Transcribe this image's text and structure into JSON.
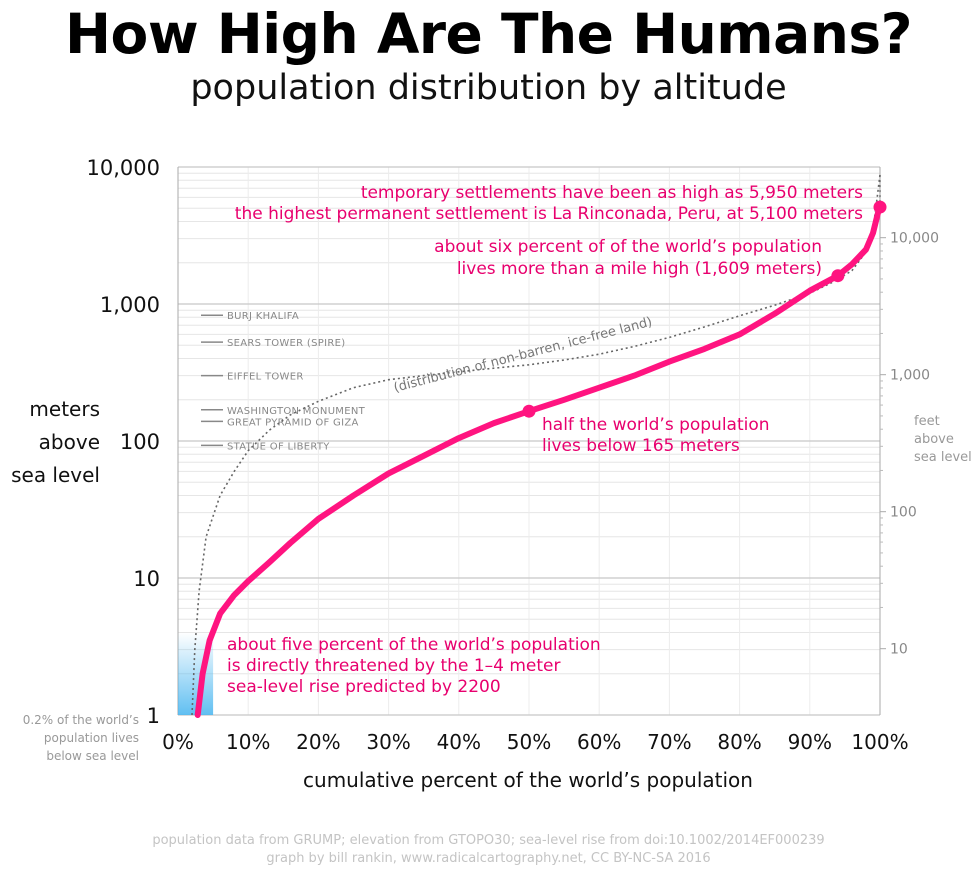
{
  "page": {
    "title": "How High Are The Humans?",
    "subtitle": "population distribution by altitude",
    "footer_line1": "population data from GRUMP; elevation from GTOPO30; sea-level rise from doi:10.1002/2014EF000239",
    "footer_line2": "graph by bill rankin, www.radicalcartography.net, CC BY-NC-SA 2016"
  },
  "colors": {
    "population_curve": "#ff1480",
    "land_curve": "#666666",
    "sea_level_fill": "#4fb8f0",
    "gridline": "#c8c8c8",
    "annotation_text": "#e8006e"
  },
  "chart_data": {
    "type": "line",
    "xlabel": "cumulative percent of the world’s population",
    "ylabel_left": [
      "meters",
      "above",
      "sea level"
    ],
    "ylabel_right": [
      "feet",
      "above",
      "sea level"
    ],
    "y_scale": "log",
    "ylim": [
      1,
      10000
    ],
    "xlim": [
      0,
      100
    ],
    "x_ticks": [
      0,
      10,
      20,
      30,
      40,
      50,
      60,
      70,
      80,
      90,
      100
    ],
    "x_tick_labels": [
      "0%",
      "10%",
      "20%",
      "30%",
      "40%",
      "50%",
      "60%",
      "70%",
      "80%",
      "90%",
      "100%"
    ],
    "y_ticks": [
      1,
      10,
      100,
      1000,
      10000
    ],
    "y_tick_labels": [
      "1",
      "10",
      "100",
      "1,000",
      "10,000"
    ],
    "y_feet_ticks": [
      10,
      100,
      1000,
      10000
    ],
    "y_feet_tick_labels": [
      "10",
      "100",
      "1,000",
      "10,000"
    ],
    "grid": true,
    "series": [
      {
        "x": [
          2.8,
          3.5,
          4.5,
          6,
          8,
          10,
          13,
          16,
          20,
          25,
          30,
          35,
          40,
          45,
          50,
          55,
          60,
          65,
          70,
          75,
          80,
          85,
          90,
          94,
          96,
          98,
          99,
          99.7,
          100
        ],
        "y": [
          1,
          2,
          3.5,
          5.5,
          7.5,
          9.5,
          13,
          18,
          27,
          40,
          58,
          78,
          105,
          135,
          165,
          200,
          245,
          300,
          380,
          470,
          600,
          850,
          1250,
          1609,
          1950,
          2500,
          3300,
          4600,
          5100
        ]
      },
      {
        "x": [
          2,
          2.4,
          3,
          4,
          6,
          8,
          10,
          13,
          16,
          20,
          25,
          30,
          35,
          40,
          45,
          50,
          55,
          60,
          65,
          70,
          75,
          80,
          85,
          90,
          93,
          96,
          98,
          99,
          99.6,
          100
        ],
        "y": [
          1,
          3,
          8,
          20,
          40,
          60,
          85,
          120,
          155,
          195,
          245,
          280,
          300,
          320,
          340,
          360,
          390,
          430,
          490,
          570,
          680,
          820,
          980,
          1200,
          1420,
          1750,
          2400,
          3500,
          6000,
          8800
        ]
      }
    ],
    "land_series_label": "(distribution of non-barren, ice-free land)",
    "highlight_points": [
      {
        "x": 50,
        "y": 165
      },
      {
        "x": 94,
        "y": 1609
      },
      {
        "x": 100,
        "y": 5100
      }
    ],
    "sea_level_band": {
      "x": [
        0,
        5
      ],
      "y": [
        1,
        4
      ]
    },
    "reference_heights": [
      {
        "label": "BURJ KHALIFA",
        "y": 828
      },
      {
        "label": "SEARS TOWER (SPIRE)",
        "y": 527
      },
      {
        "label": "EIFFEL TOWER",
        "y": 300
      },
      {
        "label": "WASHINGTON MONUMENT",
        "y": 169
      },
      {
        "label": "GREAT PYRAMID OF GIZA",
        "y": 139
      },
      {
        "label": "STATUE OF LIBERTY",
        "y": 93
      }
    ],
    "annotations": {
      "temp": "temporary settlements have been as high as 5,950 meters",
      "perm": "the highest permanent settlement is La Rinconada, Peru, at 5,100 meters",
      "mile1": "about six percent of of the world’s population",
      "mile2": "lives more than a mile high (1,609 meters)",
      "half1": "half the world’s population",
      "half2": "lives below 165 meters",
      "sea1": "about five percent of the world’s population",
      "sea2": "is directly threatened by the 1–4 meter",
      "sea3": "sea-level rise predicted by 2200",
      "below1": "0.2% of the world’s",
      "below2": "population lives",
      "below3": "below sea level"
    }
  }
}
